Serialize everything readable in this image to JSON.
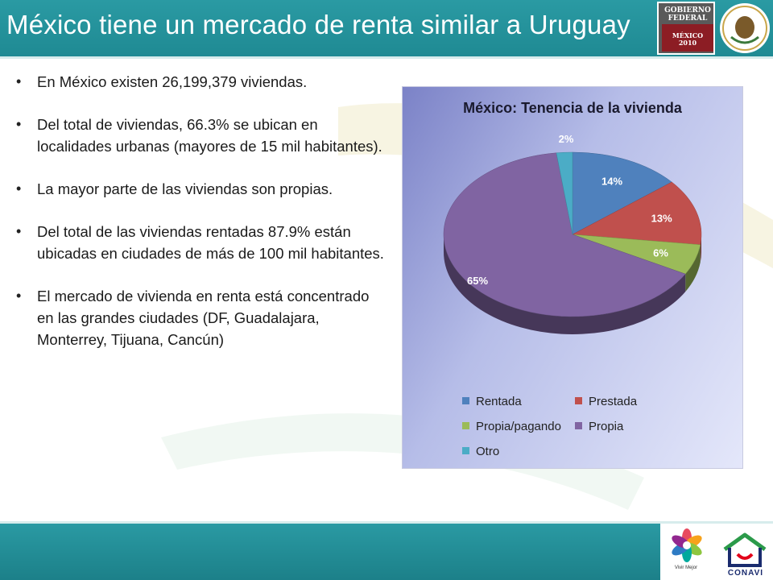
{
  "header": {
    "title": "México tiene un mercado de renta similar a Uruguay",
    "gov_logo_line1": "GOBIERNO",
    "gov_logo_line2": "FEDERAL",
    "gov_logo_line3": "MÉXICO",
    "gov_logo_line4": "2010"
  },
  "bullets": [
    "En México existen 26,199,379 viviendas.",
    "Del total de viviendas, 66.3% se ubican en localidades urbanas (mayores de 15 mil habitantes).",
    "La mayor parte de las viviendas son propias.",
    "Del total de las viviendas rentadas 87.9% están ubicadas en ciudades de más de 100 mil habitantes.",
    "El mercado de vivienda en renta está concentrado en las grandes ciudades (DF, Guadalajara, Monterrey, Tijuana, Cancún)"
  ],
  "chart_data": {
    "type": "pie",
    "title": "México: Tenencia de la vivienda",
    "categories": [
      "Rentada",
      "Prestada",
      "Propia/pagando",
      "Propia",
      "Otro"
    ],
    "values": [
      14,
      13,
      6,
      65,
      2
    ],
    "data_labels": [
      "14%",
      "13%",
      "6%",
      "65%",
      "2%"
    ],
    "colors": [
      "#4f81bd",
      "#c0504d",
      "#9bbb59",
      "#8064a2",
      "#4bacc6"
    ],
    "legend_position": "bottom",
    "style": "3d"
  },
  "footer": {
    "vivir_mejor_label": "Vivir Mejor",
    "conavi_label": "CONAVI"
  }
}
